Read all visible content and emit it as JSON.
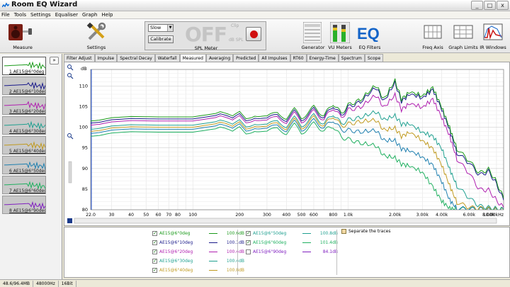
{
  "window": {
    "title": "Room EQ Wizard",
    "min": "_",
    "max": "□",
    "close": "x"
  },
  "menu": [
    "File",
    "Tools",
    "Settings",
    "Equaliser",
    "Graph",
    "Help"
  ],
  "toolbar": {
    "measure": "Measure",
    "settings": "Settings",
    "spl": {
      "mode": "Slow",
      "calibrate": "Calibrate",
      "display": "OFF",
      "clip": "Clip",
      "unit": "dB SPL",
      "label": "SPL Meter"
    },
    "generator": "Generator",
    "vu_meters": "VU Meters",
    "eq_filters": "EQ Filters",
    "freq_axis": "Freq Axis",
    "graph_limits": "Graph Limits",
    "ir_windows": "IR Windows"
  },
  "list_toggle": "»",
  "measurements": [
    {
      "name": "1 AE15@6°0deg",
      "color": "#1a9a1a",
      "selected": true
    },
    {
      "name": "2 AE15@6°10deg",
      "color": "#1a1a8a",
      "selected": false
    },
    {
      "name": "3 AE15@6°20deg",
      "color": "#b020b0",
      "selected": false
    },
    {
      "name": "4 AE15@6°30deg",
      "color": "#20a090",
      "selected": false
    },
    {
      "name": "5 AE15@6°40deg",
      "color": "#c09a20",
      "selected": false
    },
    {
      "name": "6 AE15@6°50deg",
      "color": "#2080b0",
      "selected": false
    },
    {
      "name": "7 AE15@6°60deg",
      "color": "#20b060",
      "selected": false
    },
    {
      "name": "8 AE15@6°90deg",
      "color": "#8020c0",
      "selected": false
    }
  ],
  "tabs": [
    {
      "label": "Filter Adjust",
      "active": false
    },
    {
      "label": "Impulse",
      "active": false
    },
    {
      "label": "Spectral Decay",
      "active": false
    },
    {
      "label": "Waterfall",
      "active": false
    },
    {
      "label": "Measured",
      "active": true
    },
    {
      "label": "Averaging",
      "active": false
    },
    {
      "label": "Predicted",
      "active": false
    },
    {
      "label": "All Impulses",
      "active": false
    },
    {
      "label": "RT60",
      "active": false
    },
    {
      "label": "Energy-Time",
      "active": false
    },
    {
      "label": "Spectrum",
      "active": false
    },
    {
      "label": "Scope",
      "active": false
    }
  ],
  "chart_data": {
    "type": "line",
    "ylabel": "dB",
    "xlabel": "Hz",
    "x_scale": "log",
    "xlim": [
      22,
      10000
    ],
    "ylim": [
      80,
      114
    ],
    "y_ticks": [
      80,
      85,
      90,
      95,
      100,
      105,
      110
    ],
    "x_tick_labels": [
      "22.0",
      "30",
      "40",
      "50",
      "60",
      "70",
      "80",
      "100",
      "200",
      "300",
      "400",
      "500",
      "600",
      "800",
      "1.0k",
      "2.00k",
      "3.00k",
      "4.00k",
      "6.00k",
      "8.00k",
      "10.00kHz"
    ],
    "x_tick_values": [
      22,
      30,
      40,
      50,
      60,
      70,
      80,
      100,
      200,
      300,
      400,
      500,
      600,
      800,
      1000,
      2000,
      3000,
      4000,
      6000,
      8000,
      10000
    ],
    "freqs": [
      22,
      25,
      30,
      40,
      60,
      100,
      150,
      180,
      200,
      220,
      250,
      300,
      350,
      400,
      450,
      500,
      600,
      700,
      800,
      900,
      1000,
      1200,
      1500,
      1700,
      2000,
      2200,
      2500,
      3000,
      3500,
      4000,
      4500,
      5000,
      6000,
      7000,
      8000,
      9000,
      10000
    ],
    "series": [
      {
        "name": "AE15@6°0deg",
        "color": "#1a9a1a",
        "values": [
          101.5,
          101.7,
          102.3,
          102.6,
          102.5,
          102.5,
          103.5,
          102.2,
          103.6,
          102.3,
          103.2,
          102.3,
          103.6,
          102.3,
          104.2,
          102.3,
          104.8,
          102.8,
          105.8,
          103.3,
          105.4,
          106.6,
          110.2,
          106.8,
          111.3,
          106.8,
          108.6,
          107.6,
          109.6,
          104.8,
          99.8,
          94.8,
          91.8,
          88.8,
          89.8,
          86.8,
          82.8
        ]
      },
      {
        "name": "AE15@6°10deg",
        "color": "#1a1a8a",
        "values": [
          101,
          101.2,
          101.8,
          102.1,
          102,
          102,
          103,
          101.7,
          103.1,
          101.8,
          102.7,
          101.8,
          103.1,
          101.8,
          103.7,
          101.8,
          104.3,
          102.3,
          105.3,
          102.8,
          104.9,
          106.1,
          109.7,
          106.3,
          110.8,
          106.3,
          108.1,
          107.1,
          109.1,
          104.3,
          99.3,
          93.8,
          91.3,
          88.3,
          89.3,
          86.3,
          82.3
        ]
      },
      {
        "name": "AE15@6°20deg",
        "color": "#b020b0",
        "values": [
          100.5,
          100.7,
          101.3,
          101.6,
          101.5,
          101.5,
          102.5,
          101.2,
          102.6,
          101.3,
          102.2,
          101.3,
          102.6,
          101.3,
          103.2,
          101.3,
          103.8,
          101.8,
          104.8,
          102.3,
          104.2,
          104.8,
          107.8,
          104.8,
          107.8,
          104.3,
          105.8,
          104.8,
          106.8,
          102.3,
          97.8,
          92.3,
          88.8,
          84.8,
          84.8,
          82.3,
          80.5
        ]
      },
      {
        "name": "AE15@6°30deg",
        "color": "#20a090",
        "values": [
          99.5,
          99.7,
          100.3,
          100.6,
          100.5,
          100.5,
          101.5,
          100.2,
          101.6,
          100.3,
          101.2,
          100.3,
          101.6,
          100.3,
          102.2,
          100.3,
          102.8,
          100.8,
          103.3,
          100.8,
          101.8,
          102.3,
          103.8,
          101.8,
          102.8,
          100.8,
          100.8,
          98.8,
          97.8,
          94.8,
          89.8,
          85.8,
          82.8,
          80.8,
          80.5,
          80.3,
          80.1
        ]
      },
      {
        "name": "AE15@6°40deg",
        "color": "#c09a20",
        "values": [
          99,
          99.2,
          99.8,
          100.1,
          100,
          100,
          101,
          99.7,
          101.1,
          99.8,
          100.7,
          99.8,
          101.1,
          99.8,
          101.7,
          99.8,
          102.3,
          100.3,
          102.8,
          100.3,
          100.8,
          101.3,
          101.8,
          99.3,
          99.8,
          97.8,
          98.8,
          96.8,
          94.8,
          90.8,
          85.8,
          81.8,
          80.5,
          80.3,
          80.2,
          80.1,
          80.05
        ]
      },
      {
        "name": "AE15@6°50deg",
        "color": "#2080b0",
        "values": [
          98.5,
          98.7,
          99.3,
          99.6,
          99.5,
          99.5,
          100.5,
          99.2,
          100.6,
          99.3,
          100.2,
          99.3,
          100.6,
          99.3,
          101.2,
          99.3,
          101.6,
          99.8,
          101.8,
          99.3,
          99.3,
          98.8,
          99.3,
          96.8,
          96.8,
          94.8,
          94.3,
          92.8,
          90.8,
          86.8,
          82.3,
          80.3,
          80.2,
          80.1,
          80.05,
          80.02,
          80.01
        ]
      },
      {
        "name": "AE15@6°60deg",
        "color": "#20b060",
        "values": [
          97.8,
          98,
          98.6,
          98.9,
          98.8,
          98.8,
          99.8,
          98.5,
          99.9,
          98.6,
          99.5,
          98.6,
          99.9,
          98.6,
          100.5,
          98.6,
          100.8,
          99.1,
          100.3,
          97.6,
          97.1,
          96.1,
          95.6,
          93.1,
          92.6,
          91.1,
          90.6,
          89.1,
          85.6,
          82.1,
          80.3,
          80.2,
          80.1,
          80.05,
          80.02,
          80.01,
          80
        ]
      }
    ]
  },
  "legend": [
    {
      "name": "AE15@6°0deg",
      "value": "100.6dB",
      "checked": true,
      "color": "#1a9a1a"
    },
    {
      "name": "AE15@6°10deg",
      "value": "100.1dB",
      "checked": true,
      "color": "#1a1a8a"
    },
    {
      "name": "AE15@6°20deg",
      "value": "100.4dB",
      "checked": true,
      "color": "#b020b0"
    },
    {
      "name": "AE15@6°30deg",
      "value": "100.4dB",
      "checked": true,
      "color": "#20a090"
    },
    {
      "name": "AE15@6°40deg",
      "value": "100.8dB",
      "checked": true,
      "color": "#c09a20"
    },
    {
      "name": "AE15@6°50deg",
      "value": "100.8dB",
      "checked": true,
      "color": "#20a090"
    },
    {
      "name": "AE15@6°60deg",
      "value": "101.4dB",
      "checked": true,
      "color": "#20b060"
    },
    {
      "name": "AE15@6°90deg",
      "value": "84.1dB",
      "checked": false,
      "color": "#8020c0"
    }
  ],
  "separate_traces": "Separate the traces",
  "status": {
    "memory": "48.6/96.4MB",
    "rate": "48000Hz",
    "bits": "16Bit"
  }
}
